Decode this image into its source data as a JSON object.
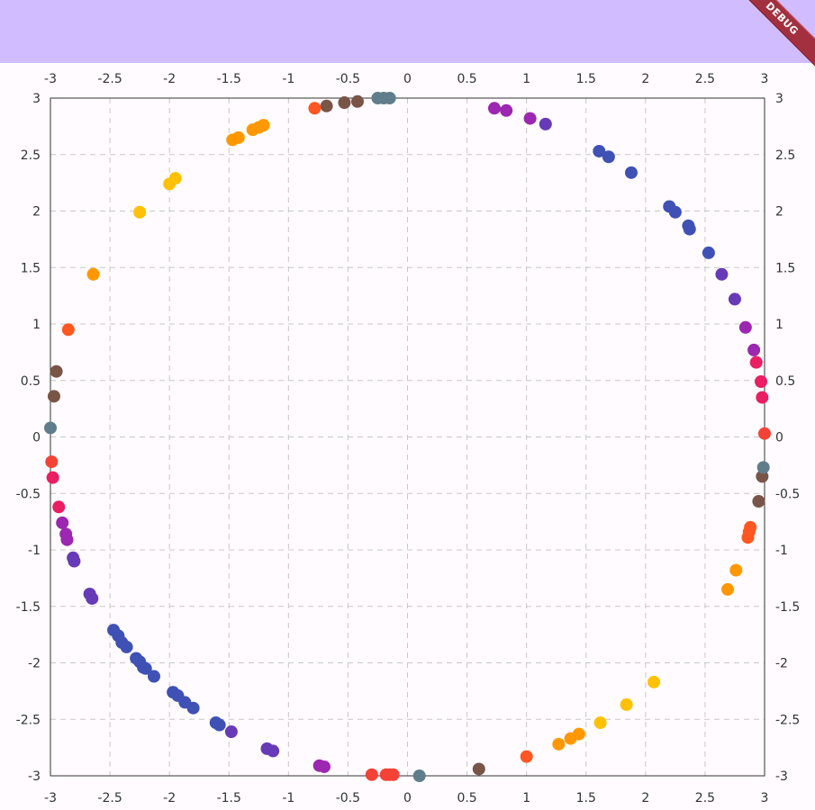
{
  "debug_banner": "DEBUG",
  "colors": {
    "appbar": "#d0bcff",
    "banner": "#a3303f",
    "grid": "#c8c8c8",
    "axis": "#333333"
  },
  "chart_data": {
    "type": "scatter",
    "xlim": [
      -3,
      3
    ],
    "ylim": [
      -3,
      3
    ],
    "x_ticks": [
      "-3",
      "-2.5",
      "-2",
      "-1.5",
      "-1",
      "-0.5",
      "0",
      "0.5",
      "1",
      "1.5",
      "2",
      "2.5",
      "3"
    ],
    "y_ticks": [
      "3",
      "2.5",
      "2",
      "1.5",
      "1",
      "0.5",
      "0",
      "-0.5",
      "-1",
      "-1.5",
      "-2",
      "-2.5",
      "-3"
    ],
    "grid": true,
    "grid_style": "dashed",
    "axis_labels_on": [
      "top",
      "bottom",
      "left",
      "right"
    ],
    "points": [
      {
        "x": -0.2,
        "y": 3.0,
        "color": "#607d8b"
      },
      {
        "x": -0.15,
        "y": 3.0,
        "color": "#607d8b"
      },
      {
        "x": -0.25,
        "y": 3.0,
        "color": "#607d8b"
      },
      {
        "x": -0.42,
        "y": 2.97,
        "color": "#795548"
      },
      {
        "x": -0.53,
        "y": 2.96,
        "color": "#795548"
      },
      {
        "x": -0.68,
        "y": 2.93,
        "color": "#795548"
      },
      {
        "x": -0.78,
        "y": 2.91,
        "color": "#ff5722"
      },
      {
        "x": -1.21,
        "y": 2.76,
        "color": "#ff9800"
      },
      {
        "x": -1.25,
        "y": 2.74,
        "color": "#ff9800"
      },
      {
        "x": -1.3,
        "y": 2.72,
        "color": "#ff9800"
      },
      {
        "x": -1.42,
        "y": 2.65,
        "color": "#ff9800"
      },
      {
        "x": -1.47,
        "y": 2.63,
        "color": "#ff9800"
      },
      {
        "x": -1.95,
        "y": 2.29,
        "color": "#ffc107"
      },
      {
        "x": -2.0,
        "y": 2.24,
        "color": "#ffc107"
      },
      {
        "x": -2.25,
        "y": 1.99,
        "color": "#ffc107"
      },
      {
        "x": -2.64,
        "y": 1.44,
        "color": "#ff9800"
      },
      {
        "x": -2.85,
        "y": 0.95,
        "color": "#ff5722"
      },
      {
        "x": -2.95,
        "y": 0.58,
        "color": "#795548"
      },
      {
        "x": -2.97,
        "y": 0.36,
        "color": "#795548"
      },
      {
        "x": -3.0,
        "y": 0.08,
        "color": "#607d8b"
      },
      {
        "x": -2.99,
        "y": -0.22,
        "color": "#f44336"
      },
      {
        "x": -2.98,
        "y": -0.36,
        "color": "#e91e63"
      },
      {
        "x": -2.93,
        "y": -0.62,
        "color": "#e91e63"
      },
      {
        "x": -2.9,
        "y": -0.76,
        "color": "#9c27b0"
      },
      {
        "x": -2.87,
        "y": -0.86,
        "color": "#9c27b0"
      },
      {
        "x": -2.86,
        "y": -0.91,
        "color": "#9c27b0"
      },
      {
        "x": -2.81,
        "y": -1.07,
        "color": "#673ab7"
      },
      {
        "x": -2.8,
        "y": -1.1,
        "color": "#673ab7"
      },
      {
        "x": -2.67,
        "y": -1.39,
        "color": "#673ab7"
      },
      {
        "x": -2.65,
        "y": -1.43,
        "color": "#673ab7"
      },
      {
        "x": -2.47,
        "y": -1.71,
        "color": "#3f51b5"
      },
      {
        "x": -2.43,
        "y": -1.76,
        "color": "#3f51b5"
      },
      {
        "x": -2.4,
        "y": -1.82,
        "color": "#3f51b5"
      },
      {
        "x": -2.36,
        "y": -1.86,
        "color": "#3f51b5"
      },
      {
        "x": -2.28,
        "y": -1.96,
        "color": "#3f51b5"
      },
      {
        "x": -2.25,
        "y": -1.99,
        "color": "#3f51b5"
      },
      {
        "x": -2.22,
        "y": -2.04,
        "color": "#3f51b5"
      },
      {
        "x": -2.2,
        "y": -2.05,
        "color": "#3f51b5"
      },
      {
        "x": -2.13,
        "y": -2.12,
        "color": "#3f51b5"
      },
      {
        "x": -1.97,
        "y": -2.26,
        "color": "#3f51b5"
      },
      {
        "x": -1.93,
        "y": -2.29,
        "color": "#3f51b5"
      },
      {
        "x": -1.87,
        "y": -2.35,
        "color": "#3f51b5"
      },
      {
        "x": -1.8,
        "y": -2.4,
        "color": "#3f51b5"
      },
      {
        "x": -1.61,
        "y": -2.53,
        "color": "#3f51b5"
      },
      {
        "x": -1.58,
        "y": -2.55,
        "color": "#3f51b5"
      },
      {
        "x": -1.48,
        "y": -2.61,
        "color": "#673ab7"
      },
      {
        "x": -1.18,
        "y": -2.76,
        "color": "#673ab7"
      },
      {
        "x": -1.13,
        "y": -2.78,
        "color": "#673ab7"
      },
      {
        "x": -0.74,
        "y": -2.91,
        "color": "#9c27b0"
      },
      {
        "x": -0.7,
        "y": -2.92,
        "color": "#9c27b0"
      },
      {
        "x": -0.3,
        "y": -2.99,
        "color": "#f44336"
      },
      {
        "x": -0.18,
        "y": -2.99,
        "color": "#f44336"
      },
      {
        "x": -0.15,
        "y": -2.99,
        "color": "#f44336"
      },
      {
        "x": -0.12,
        "y": -2.99,
        "color": "#f44336"
      },
      {
        "x": 0.1,
        "y": -3.0,
        "color": "#607d8b"
      },
      {
        "x": 0.6,
        "y": -2.94,
        "color": "#795548"
      },
      {
        "x": 1.0,
        "y": -2.83,
        "color": "#ff5722"
      },
      {
        "x": 1.27,
        "y": -2.72,
        "color": "#ff9800"
      },
      {
        "x": 1.37,
        "y": -2.67,
        "color": "#ff9800"
      },
      {
        "x": 1.44,
        "y": -2.63,
        "color": "#ff9800"
      },
      {
        "x": 1.62,
        "y": -2.53,
        "color": "#ffc107"
      },
      {
        "x": 1.84,
        "y": -2.37,
        "color": "#ffc107"
      },
      {
        "x": 2.07,
        "y": -2.17,
        "color": "#ffc107"
      },
      {
        "x": 2.69,
        "y": -1.35,
        "color": "#ff9800"
      },
      {
        "x": 2.76,
        "y": -1.18,
        "color": "#ff9800"
      },
      {
        "x": 2.86,
        "y": -0.89,
        "color": "#ff5722"
      },
      {
        "x": 2.87,
        "y": -0.84,
        "color": "#ff5722"
      },
      {
        "x": 2.88,
        "y": -0.8,
        "color": "#ff5722"
      },
      {
        "x": 2.95,
        "y": -0.57,
        "color": "#795548"
      },
      {
        "x": 2.98,
        "y": -0.35,
        "color": "#795548"
      },
      {
        "x": 2.99,
        "y": -0.27,
        "color": "#607d8b"
      },
      {
        "x": 3.0,
        "y": 0.03,
        "color": "#f44336"
      },
      {
        "x": 2.98,
        "y": 0.35,
        "color": "#e91e63"
      },
      {
        "x": 2.97,
        "y": 0.49,
        "color": "#e91e63"
      },
      {
        "x": 2.93,
        "y": 0.66,
        "color": "#e91e63"
      },
      {
        "x": 2.91,
        "y": 0.77,
        "color": "#9c27b0"
      },
      {
        "x": 2.84,
        "y": 0.97,
        "color": "#9c27b0"
      },
      {
        "x": 2.75,
        "y": 1.22,
        "color": "#673ab7"
      },
      {
        "x": 2.64,
        "y": 1.44,
        "color": "#673ab7"
      },
      {
        "x": 2.53,
        "y": 1.63,
        "color": "#3f51b5"
      },
      {
        "x": 2.37,
        "y": 1.84,
        "color": "#3f51b5"
      },
      {
        "x": 2.36,
        "y": 1.87,
        "color": "#3f51b5"
      },
      {
        "x": 2.25,
        "y": 1.99,
        "color": "#3f51b5"
      },
      {
        "x": 2.2,
        "y": 2.04,
        "color": "#3f51b5"
      },
      {
        "x": 1.88,
        "y": 2.34,
        "color": "#3f51b5"
      },
      {
        "x": 1.69,
        "y": 2.48,
        "color": "#3f51b5"
      },
      {
        "x": 1.61,
        "y": 2.53,
        "color": "#3f51b5"
      },
      {
        "x": 1.16,
        "y": 2.77,
        "color": "#673ab7"
      },
      {
        "x": 1.03,
        "y": 2.82,
        "color": "#9c27b0"
      },
      {
        "x": 0.83,
        "y": 2.89,
        "color": "#9c27b0"
      },
      {
        "x": 0.73,
        "y": 2.91,
        "color": "#9c27b0"
      }
    ]
  }
}
